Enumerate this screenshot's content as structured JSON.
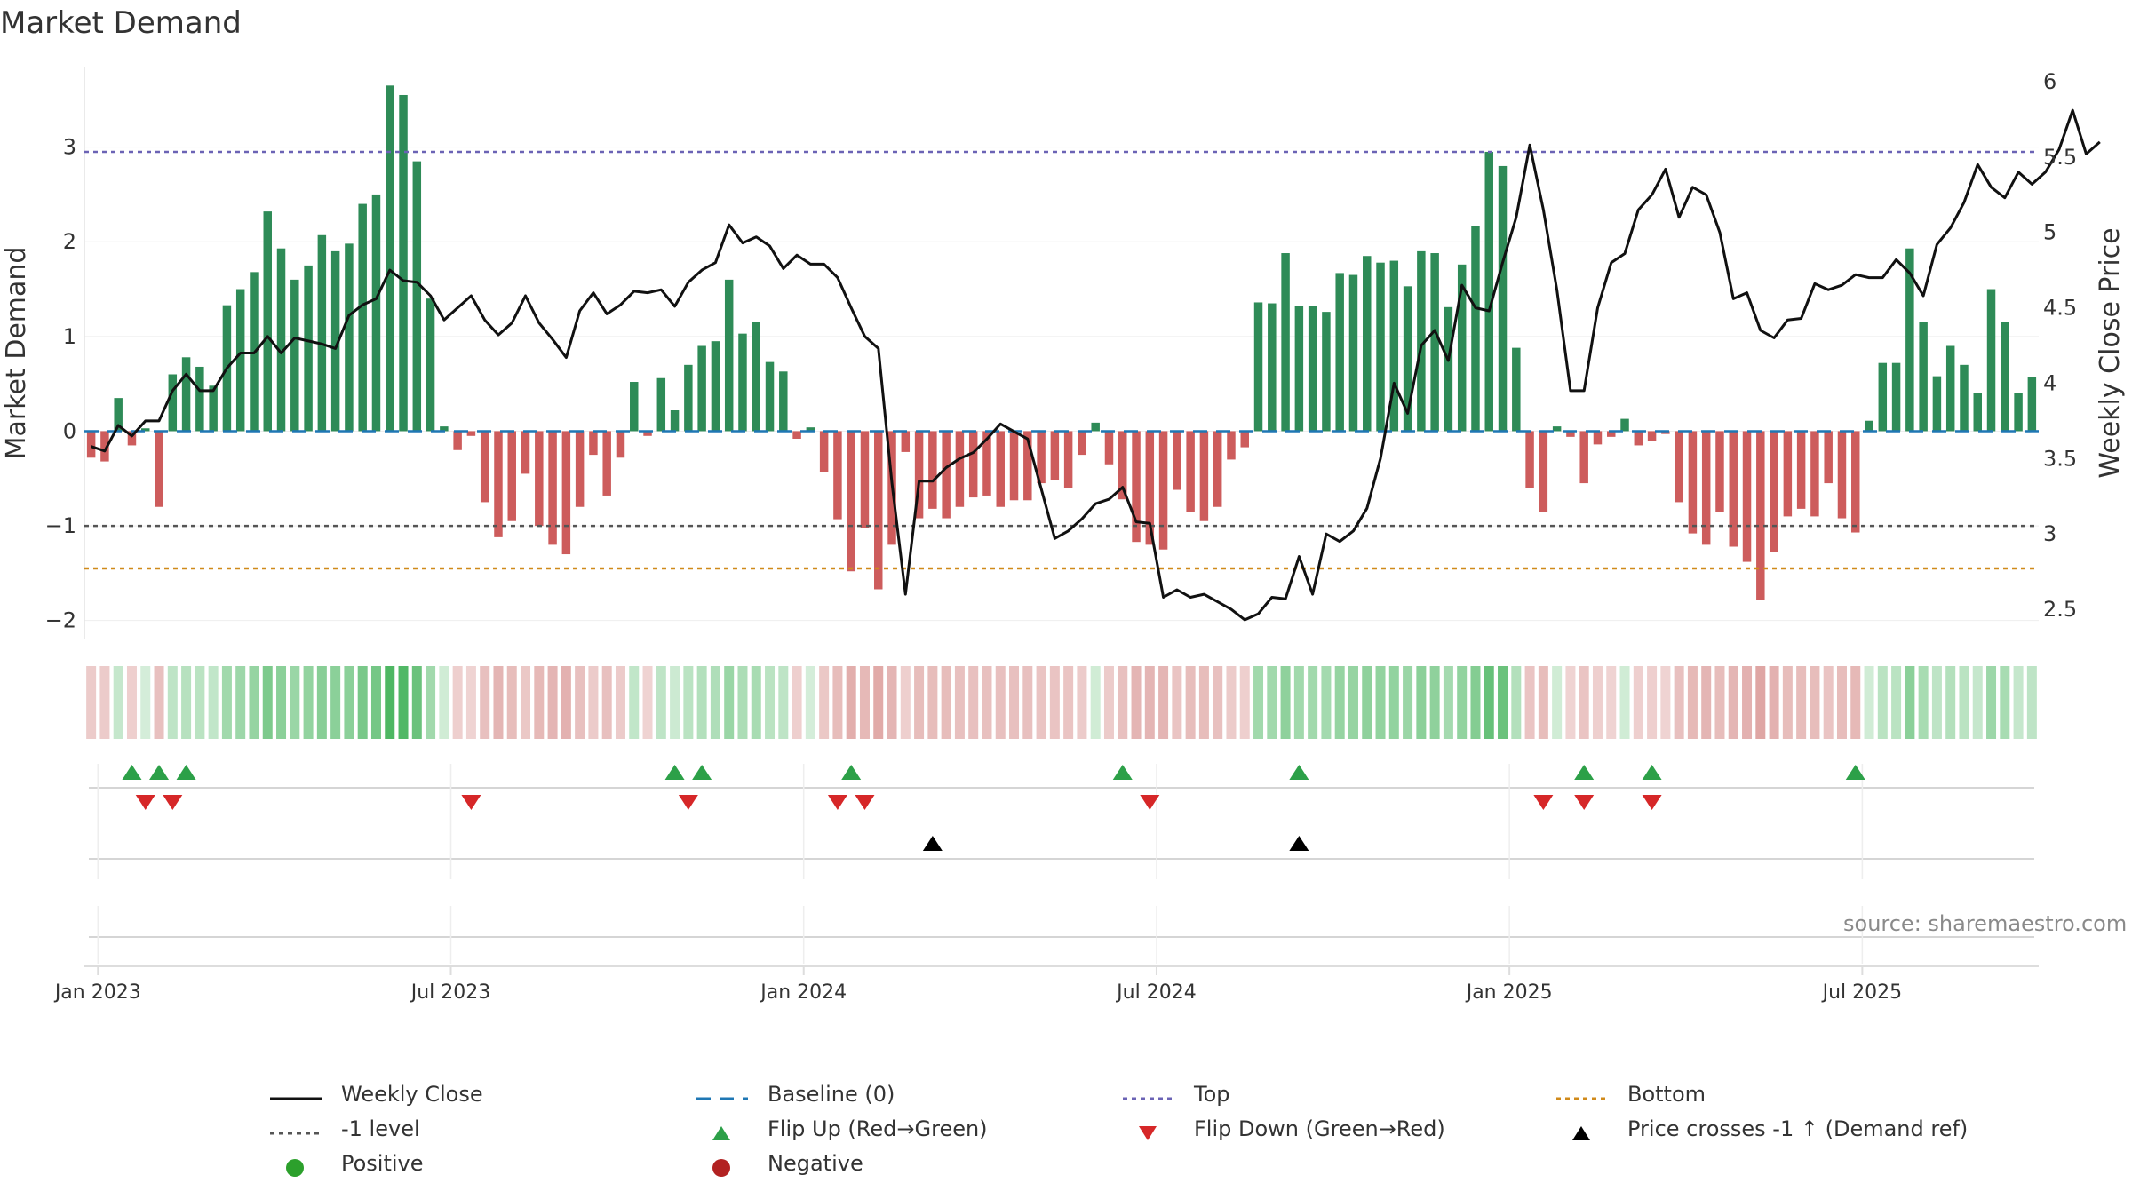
{
  "title": "Market Demand",
  "source_note": "source: sharemaestro.com",
  "legend": {
    "items": [
      {
        "label": "Weekly Close",
        "symbol": "line",
        "color": "#111111"
      },
      {
        "label": "Baseline (0)",
        "symbol": "dash",
        "color": "#1f77b4"
      },
      {
        "label": "Top",
        "symbol": "dotted",
        "color": "#6b63b5"
      },
      {
        "label": "Bottom",
        "symbol": "dotted",
        "color": "#d08a1a"
      },
      {
        "label": "-1 level",
        "symbol": "dotted",
        "color": "#555555"
      },
      {
        "label": "Flip Up (Red→Green)",
        "symbol": "tri-up",
        "color": "#2ca048"
      },
      {
        "label": "Flip Down (Green→Red)",
        "symbol": "tri-down",
        "color": "#d62728"
      },
      {
        "label": "Price crosses -1 ↑ (Demand ref)",
        "symbol": "tri-up",
        "color": "#000000"
      },
      {
        "label": "Positive",
        "symbol": "dot",
        "color": "#2ca02c"
      },
      {
        "label": "Negative",
        "symbol": "dot",
        "color": "#b22222"
      }
    ]
  },
  "chart_data": {
    "type": "bar+line",
    "title": "Market Demand",
    "ylabel": "Market Demand",
    "y2label": "Weekly Close Price",
    "ylim": [
      -2.2,
      3.85
    ],
    "y2lim": [
      2.3,
      6.1
    ],
    "yticks": [
      -2,
      -1,
      0,
      1,
      2,
      3
    ],
    "y2ticks": [
      2.5,
      3,
      3.5,
      4,
      4.5,
      5,
      5.5,
      6
    ],
    "xlabels": [
      "Jan 2023",
      "Jul 2023",
      "Jan 2024",
      "Jul 2024",
      "Jan 2025",
      "Jul 2025"
    ],
    "xlabel_weeks": [
      1,
      27,
      53,
      79,
      105,
      131
    ],
    "reference_lines": {
      "top": 2.95,
      "minus1": -1.0,
      "bottom": -1.45,
      "baseline": 0
    },
    "colors": {
      "positive": "#2e8b57",
      "negative": "#cd5c5c",
      "price": "#111111",
      "top": "#6b63b5",
      "minus1": "#555555",
      "bottom": "#d08a1a",
      "baseline": "#1f77b4"
    },
    "demand": [
      -0.28,
      -0.32,
      0.35,
      -0.15,
      0.03,
      -0.8,
      0.6,
      0.78,
      0.68,
      0.48,
      1.33,
      1.5,
      1.68,
      2.32,
      1.93,
      1.6,
      1.75,
      2.07,
      1.9,
      1.98,
      2.4,
      2.5,
      3.65,
      3.55,
      2.85,
      1.4,
      0.05,
      -0.2,
      -0.05,
      -0.75,
      -1.12,
      -0.95,
      -0.45,
      -1.0,
      -1.2,
      -1.3,
      -0.8,
      -0.25,
      -0.68,
      -0.28,
      0.52,
      -0.05,
      0.56,
      0.22,
      0.7,
      0.9,
      0.95,
      1.6,
      1.03,
      1.15,
      0.73,
      0.63,
      -0.08,
      0.04,
      -0.43,
      -0.93,
      -1.48,
      -1.02,
      -1.67,
      -1.2,
      -0.22,
      -0.92,
      -0.82,
      -0.92,
      -0.8,
      -0.7,
      -0.68,
      -0.8,
      -0.73,
      -0.73,
      -0.55,
      -0.52,
      -0.6,
      -0.25,
      0.09,
      -0.35,
      -0.72,
      -1.17,
      -1.2,
      -1.25,
      -0.62,
      -0.85,
      -0.95,
      -0.8,
      -0.3,
      -0.17,
      1.36,
      1.35,
      1.88,
      1.32,
      1.32,
      1.26,
      1.67,
      1.65,
      1.85,
      1.78,
      1.8,
      1.53,
      1.9,
      1.88,
      1.31,
      1.76,
      2.17,
      2.95,
      2.8,
      0.88,
      -0.6,
      -0.85,
      0.05,
      -0.06,
      -0.55,
      -0.14,
      -0.06,
      0.13,
      -0.15,
      -0.1,
      -0.03,
      -0.75,
      -1.08,
      -1.2,
      -0.85,
      -1.22,
      -1.38,
      -1.78,
      -1.28,
      -0.9,
      -0.82,
      -0.9,
      -0.55,
      -0.92,
      -1.07,
      0.11,
      0.72,
      0.72,
      1.93,
      1.15,
      0.58,
      0.9,
      0.7,
      0.4,
      1.5,
      1.15,
      0.4,
      0.57
    ],
    "price": [
      3.58,
      3.55,
      3.72,
      3.65,
      3.75,
      3.75,
      3.95,
      4.06,
      3.95,
      3.95,
      4.1,
      4.2,
      4.2,
      4.31,
      4.2,
      4.3,
      4.28,
      4.26,
      4.23,
      4.45,
      4.52,
      4.56,
      4.75,
      4.68,
      4.67,
      4.58,
      4.42,
      4.5,
      4.58,
      4.42,
      4.32,
      4.4,
      4.58,
      4.4,
      4.29,
      4.17,
      4.48,
      4.6,
      4.46,
      4.52,
      4.61,
      4.6,
      4.62,
      4.51,
      4.67,
      4.75,
      4.8,
      5.05,
      4.93,
      4.97,
      4.91,
      4.76,
      4.85,
      4.79,
      4.79,
      4.7,
      4.5,
      4.31,
      4.23,
      3.34,
      2.6,
      3.35,
      3.35,
      3.44,
      3.5,
      3.54,
      3.63,
      3.73,
      3.68,
      3.63,
      3.3,
      2.97,
      3.02,
      3.1,
      3.2,
      3.23,
      3.31,
      3.08,
      3.07,
      2.58,
      2.63,
      2.58,
      2.6,
      2.55,
      2.5,
      2.43,
      2.47,
      2.58,
      2.57,
      2.85,
      2.6,
      3.0,
      2.95,
      3.02,
      3.17,
      3.5,
      4.0,
      3.8,
      4.25,
      4.35,
      4.15,
      4.65,
      4.5,
      4.48,
      4.8,
      5.1,
      5.58,
      5.15,
      4.62,
      3.95,
      3.95,
      4.5,
      4.8,
      4.86,
      5.15,
      5.25,
      5.42,
      5.1,
      5.3,
      5.25,
      5.0,
      4.56,
      4.6,
      4.35,
      4.3,
      4.42,
      4.43,
      4.66,
      4.62,
      4.65,
      4.72,
      4.7,
      4.7,
      4.82,
      4.73,
      4.58,
      4.92,
      5.03,
      5.2,
      5.45,
      5.3,
      5.23,
      5.4,
      5.32,
      5.4,
      5.55,
      5.81,
      5.52,
      5.6
    ],
    "flip_up_weeks": [
      3,
      5,
      7,
      43,
      45,
      56,
      76,
      89,
      110,
      115,
      130
    ],
    "flip_down_weeks": [
      4,
      6,
      28,
      44,
      55,
      57,
      78,
      107,
      110,
      115
    ],
    "price_cross_weeks": [
      62,
      89
    ]
  }
}
